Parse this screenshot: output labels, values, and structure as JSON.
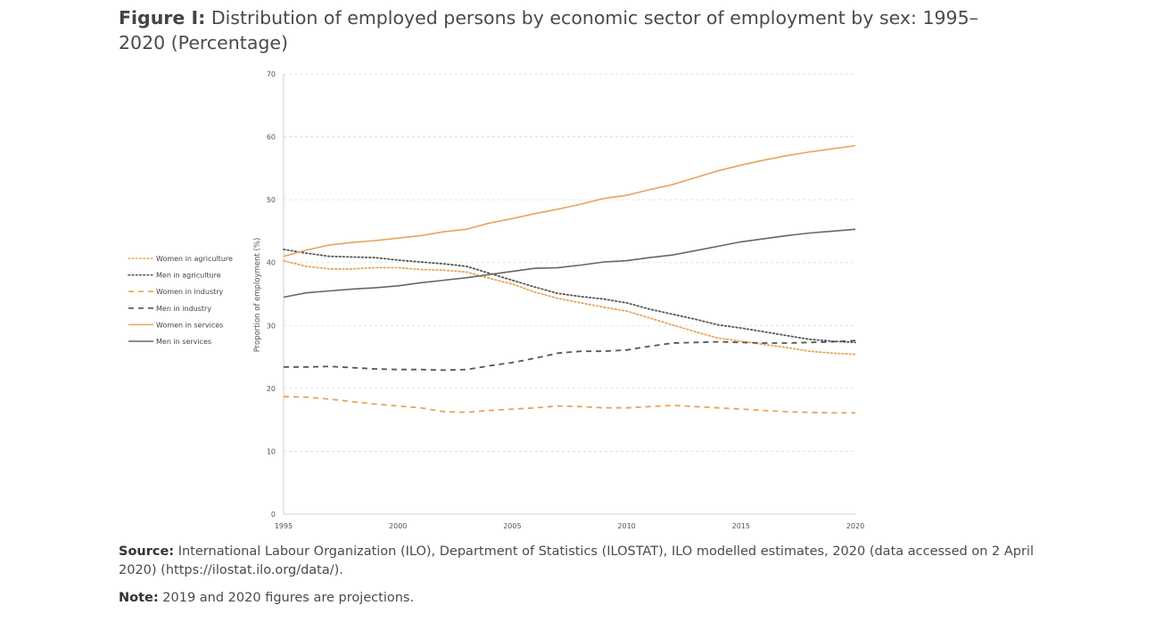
{
  "figure": {
    "label": "Figure I:",
    "title": "Distribution of employed persons by economic sector of employment by sex: 1995–2020 (Percentage)"
  },
  "source": {
    "label": "Source:",
    "text": "International Labour Organization (ILO), Department of Statistics (ILOSTAT), ILO modelled estimates, 2020 (data accessed on 2 April 2020) (https://ilostat.ilo.org/data/)."
  },
  "note": {
    "label": "Note:",
    "text": "2019 and 2020 figures are projections."
  },
  "chart_data": {
    "type": "line",
    "xlabel": "",
    "ylabel": "Proportion of employment (%)",
    "xlim": [
      1995,
      2020
    ],
    "ylim": [
      0,
      70
    ],
    "yticks": [
      0,
      10,
      20,
      30,
      40,
      50,
      60,
      70
    ],
    "xticks": [
      1995,
      2000,
      2005,
      2010,
      2015,
      2020
    ],
    "grid": "horizontal dashed",
    "legend_position": "left",
    "x": [
      1995,
      1996,
      1997,
      1998,
      1999,
      2000,
      2001,
      2002,
      2003,
      2004,
      2005,
      2006,
      2007,
      2008,
      2009,
      2010,
      2011,
      2012,
      2013,
      2014,
      2015,
      2016,
      2017,
      2018,
      2019,
      2020
    ],
    "series": [
      {
        "name": "Women in agriculture",
        "color": "#e8a35a",
        "dash": "dotted",
        "values": [
          40.3,
          39.4,
          39.0,
          39.0,
          39.2,
          39.2,
          38.9,
          38.8,
          38.5,
          37.5,
          36.6,
          35.3,
          34.3,
          33.6,
          32.9,
          32.3,
          31.2,
          30.1,
          29.0,
          28.0,
          27.5,
          27.0,
          26.5,
          25.9,
          25.6,
          25.4
        ]
      },
      {
        "name": "Men in agriculture",
        "color": "#555555",
        "dash": "dotted",
        "values": [
          42.1,
          41.5,
          41.0,
          40.9,
          40.8,
          40.4,
          40.1,
          39.8,
          39.4,
          38.3,
          37.2,
          36.1,
          35.1,
          34.6,
          34.2,
          33.6,
          32.6,
          31.8,
          31.0,
          30.1,
          29.6,
          29.0,
          28.4,
          27.8,
          27.5,
          27.3
        ]
      },
      {
        "name": "Women in industry",
        "color": "#e8a35a",
        "dash": "dashed",
        "values": [
          18.7,
          18.6,
          18.3,
          17.9,
          17.5,
          17.2,
          16.9,
          16.3,
          16.2,
          16.5,
          16.7,
          16.9,
          17.2,
          17.1,
          16.9,
          16.9,
          17.1,
          17.3,
          17.1,
          16.9,
          16.7,
          16.5,
          16.3,
          16.2,
          16.1,
          16.1
        ]
      },
      {
        "name": "Men in industry",
        "color": "#555555",
        "dash": "dashed",
        "values": [
          23.4,
          23.4,
          23.5,
          23.3,
          23.1,
          23.0,
          23.0,
          22.9,
          23.0,
          23.6,
          24.1,
          24.8,
          25.6,
          25.9,
          25.9,
          26.1,
          26.7,
          27.2,
          27.3,
          27.4,
          27.3,
          27.2,
          27.2,
          27.3,
          27.4,
          27.6
        ]
      },
      {
        "name": "Women in services",
        "color": "#e8a35a",
        "dash": "solid",
        "values": [
          41.0,
          42.0,
          42.8,
          43.2,
          43.5,
          43.9,
          44.3,
          44.9,
          45.3,
          46.3,
          47.0,
          47.8,
          48.5,
          49.3,
          50.2,
          50.7,
          51.6,
          52.4,
          53.5,
          54.6,
          55.5,
          56.3,
          57.0,
          57.6,
          58.1,
          58.6
        ]
      },
      {
        "name": "Men in services",
        "color": "#666666",
        "dash": "solid",
        "values": [
          34.5,
          35.2,
          35.5,
          35.8,
          36.0,
          36.3,
          36.8,
          37.2,
          37.6,
          38.1,
          38.6,
          39.1,
          39.2,
          39.6,
          40.1,
          40.3,
          40.8,
          41.2,
          41.9,
          42.6,
          43.3,
          43.8,
          44.3,
          44.7,
          45.0,
          45.3
        ]
      }
    ]
  }
}
